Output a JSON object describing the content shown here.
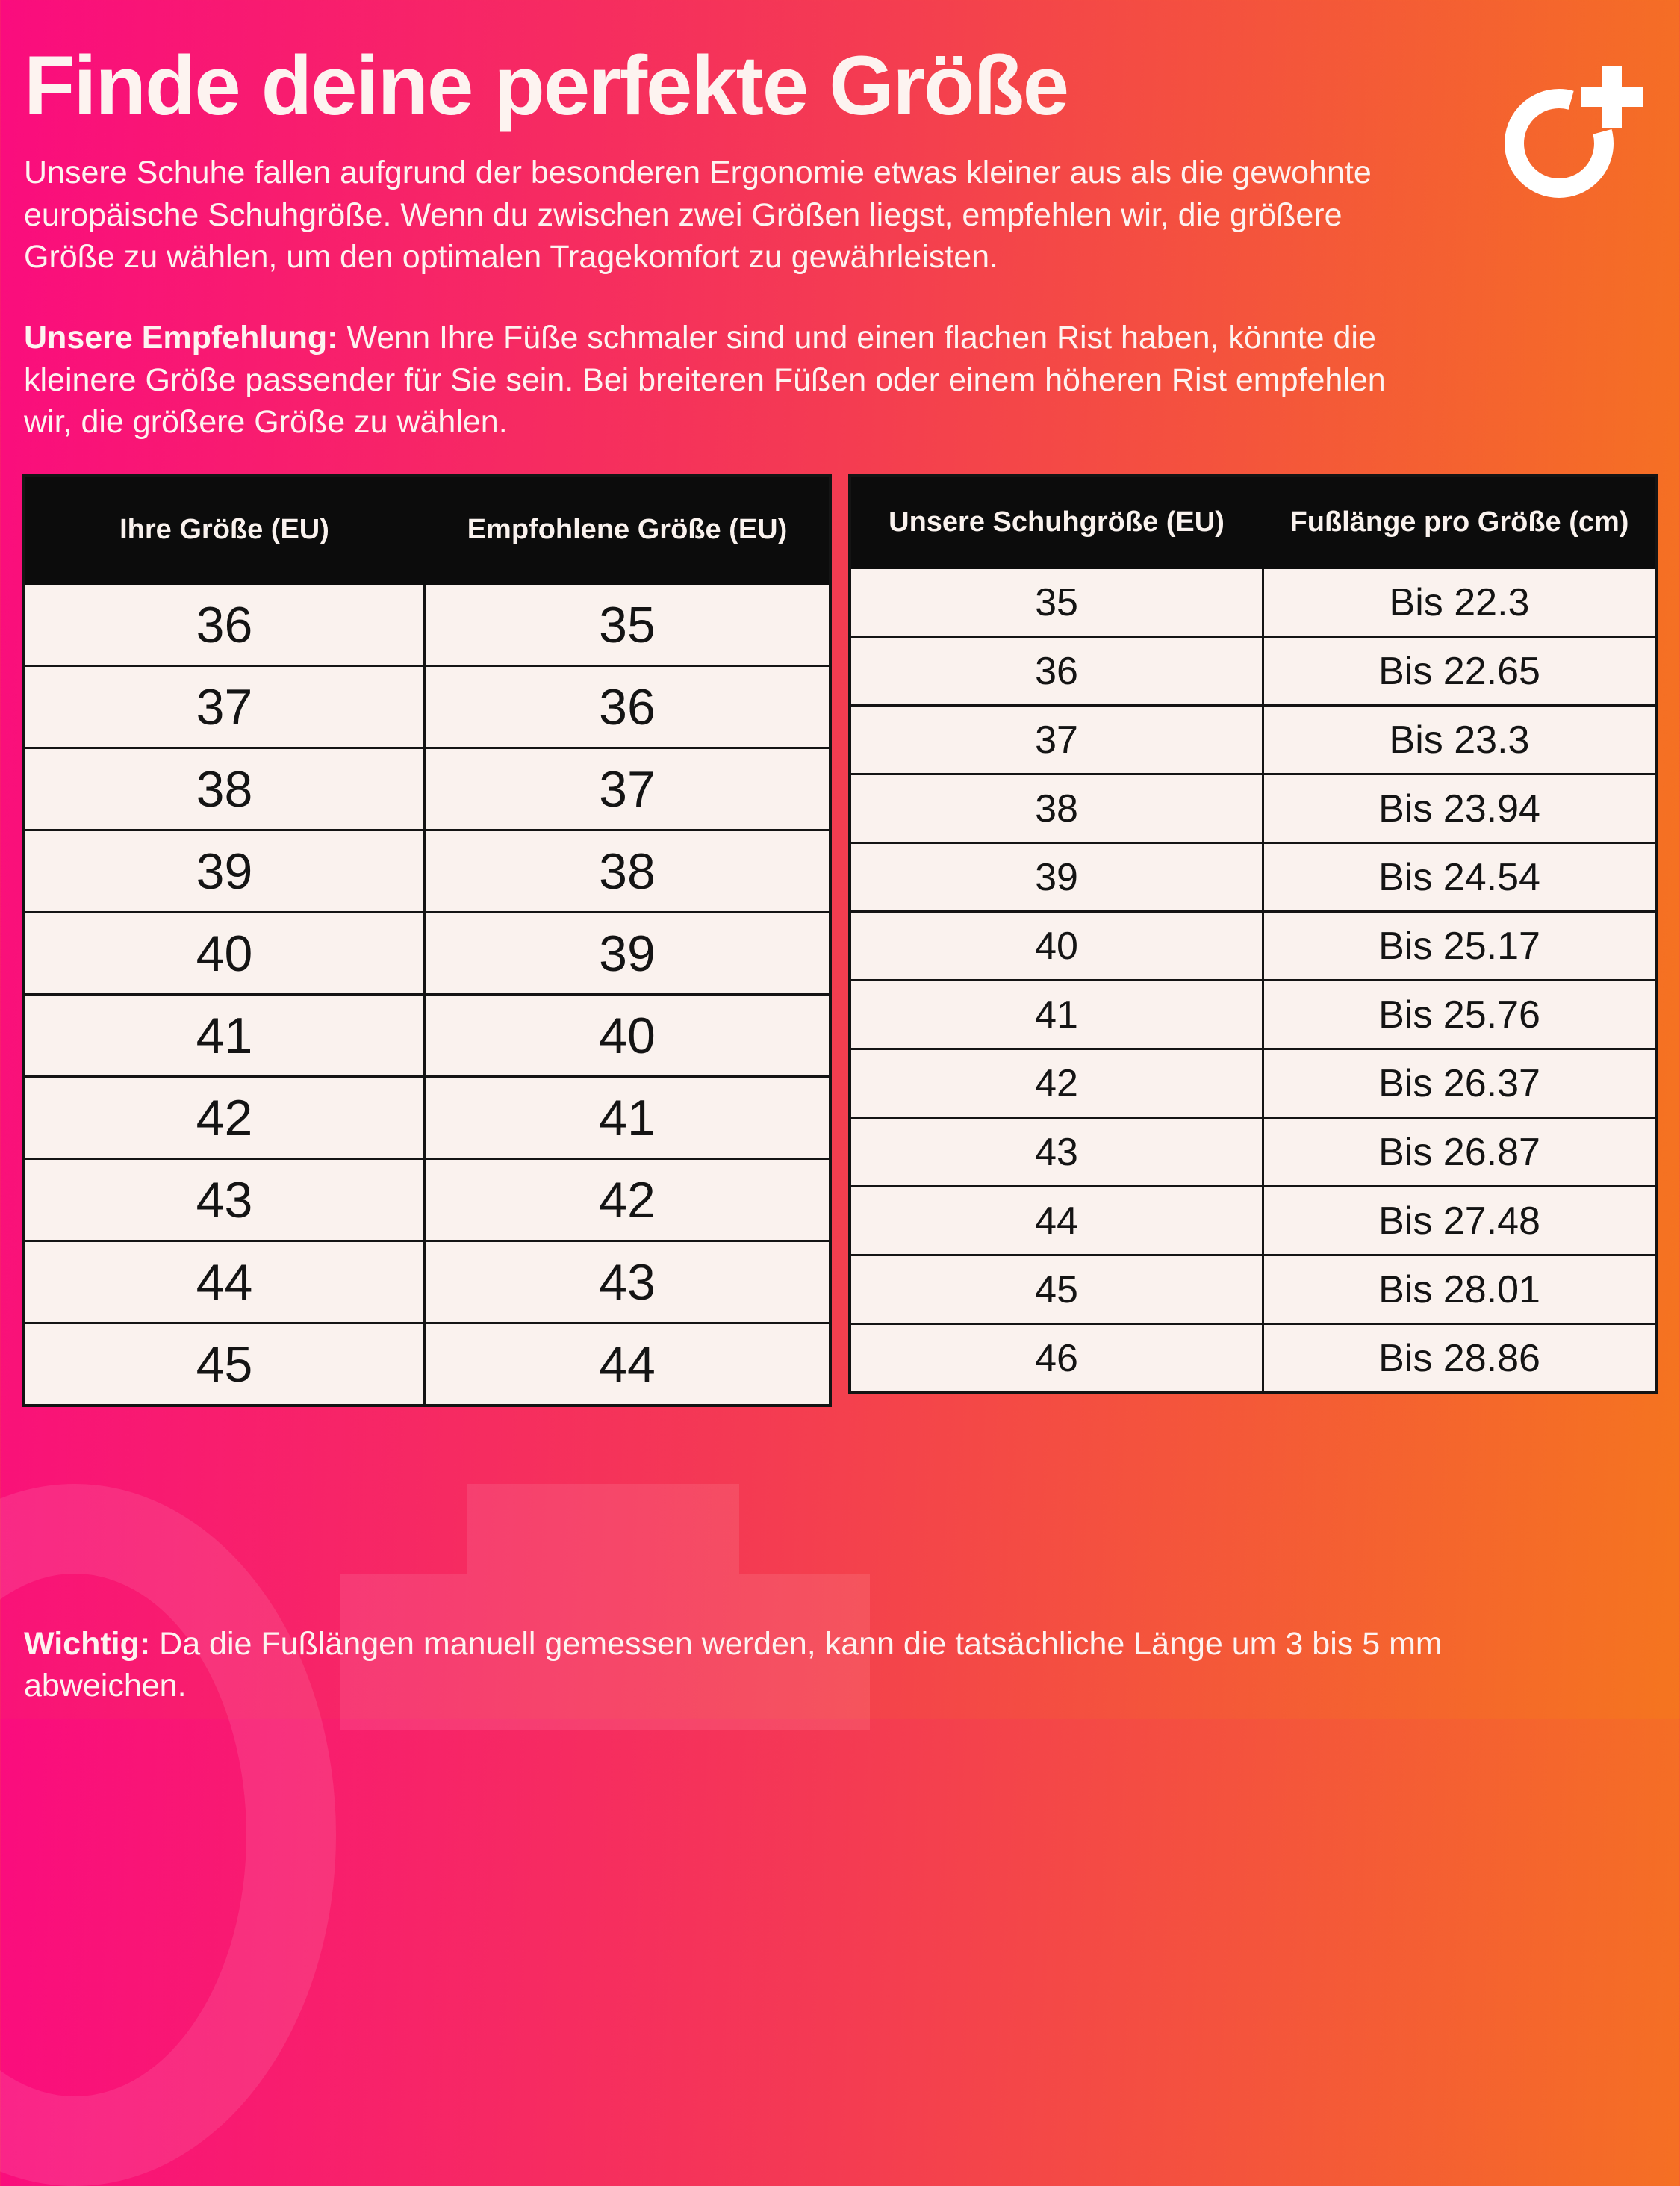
{
  "title": "Finde deine perfekte Größe",
  "intro": "Unsere Schuhe fallen aufgrund der besonderen Ergonomie etwas kleiner aus als die gewohnte\neuropäische Schuhgröße. Wenn du zwischen zwei Größen liegst, empfehlen wir, die größere\nGröße zu wählen, um den optimalen Tragekomfort zu gewährleisten.",
  "recommendation": {
    "label": "Unsere Empfehlung:",
    "text": "Wenn Ihre Füße schmaler sind und einen flachen Rist haben, könnte die\nkleinere Größe passender für Sie sein. Bei breiteren Füßen oder einem höheren Rist empfehlen\nwir, die größere Größe zu wählen."
  },
  "size_table": {
    "headers": [
      "Ihre Größe (EU)",
      "Empfohlene Größe (EU)"
    ],
    "rows": [
      [
        "36",
        "35"
      ],
      [
        "37",
        "36"
      ],
      [
        "38",
        "37"
      ],
      [
        "39",
        "38"
      ],
      [
        "40",
        "39"
      ],
      [
        "41",
        "40"
      ],
      [
        "42",
        "41"
      ],
      [
        "43",
        "42"
      ],
      [
        "44",
        "43"
      ],
      [
        "45",
        "44"
      ]
    ]
  },
  "length_table": {
    "headers": [
      "Unsere Schuhgröße (EU)",
      "Fußlänge pro Größe (cm)"
    ],
    "rows": [
      [
        "35",
        "Bis 22.3"
      ],
      [
        "36",
        "Bis 22.65"
      ],
      [
        "37",
        "Bis 23.3"
      ],
      [
        "38",
        "Bis 23.94"
      ],
      [
        "39",
        "Bis 24.54"
      ],
      [
        "40",
        "Bis 25.17"
      ],
      [
        "41",
        "Bis 25.76"
      ],
      [
        "42",
        "Bis 26.37"
      ],
      [
        "43",
        "Bis 26.87"
      ],
      [
        "44",
        "Bis 27.48"
      ],
      [
        "45",
        "Bis 28.01"
      ],
      [
        "46",
        "Bis 28.86"
      ]
    ]
  },
  "note": {
    "label": "Wichtig:",
    "text": "Da die Fußlängen manuell gemessen werden, kann die tatsächliche Länge um 3 bis 5 mm\nabweichen."
  },
  "logo": {
    "name": "o-plus-brand-logo"
  },
  "colors": {
    "gradient_left": "#fa0c7e",
    "gradient_mid": "#f43b52",
    "gradient_right": "#f5751f",
    "table_header_bg": "#0c0c0c",
    "table_cell_bg": "#faf2ee",
    "table_line": "#141414",
    "light_text": "#fdf3f0",
    "cell_text": "#141414"
  }
}
